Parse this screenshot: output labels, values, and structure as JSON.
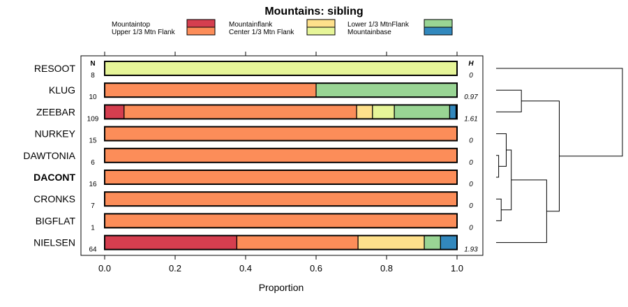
{
  "chart_data": {
    "type": "bar",
    "orientation": "horizontal",
    "stacked": "proportion",
    "title": "Mountains: sibling",
    "xlabel": "Proportion",
    "ylabel": "",
    "xlim": [
      0,
      1
    ],
    "xticks": [
      0.0,
      0.2,
      0.4,
      0.6,
      0.8,
      1.0
    ],
    "xtick_labels": [
      "0.0",
      "0.2",
      "0.4",
      "0.6",
      "0.8",
      "1.0"
    ],
    "n_header": "N",
    "h_header": "H",
    "legend": [
      {
        "name": "Mountaintop",
        "color": "#d53e4f"
      },
      {
        "name": "Upper 1/3 Mtn Flank",
        "color": "#fc8d59"
      },
      {
        "name": "Mountainflank",
        "color": "#fee08b"
      },
      {
        "name": "Center 1/3 Mtn Flank",
        "color": "#e6f598"
      },
      {
        "name": "Lower 1/3 MtnFlank",
        "color": "#99d594"
      },
      {
        "name": "Mountainbase",
        "color": "#3288bd"
      }
    ],
    "categories": [
      "RESOOT",
      "KLUG",
      "ZEEBAR",
      "NURKEY",
      "DAWTONIA",
      "DACONT",
      "CRONKS",
      "BIGFLAT",
      "NIELSEN"
    ],
    "highlighted": "DACONT",
    "N": [
      "8",
      "10",
      "109",
      "15",
      "6",
      "16",
      "7",
      "1",
      "64"
    ],
    "H": [
      "0",
      "0.97",
      "1.61",
      "0",
      "0",
      "0",
      "0",
      "0",
      "1.93"
    ],
    "series": [
      {
        "name": "Mountaintop",
        "values": [
          0,
          0,
          0.055,
          0,
          0,
          0,
          0,
          0,
          0.375
        ]
      },
      {
        "name": "Upper 1/3 Mtn Flank",
        "values": [
          0,
          0.6,
          0.66,
          1,
          1,
          1,
          1,
          1,
          0.344
        ]
      },
      {
        "name": "Mountainflank",
        "values": [
          0,
          0,
          0.045,
          0,
          0,
          0,
          0,
          0,
          0.188
        ]
      },
      {
        "name": "Center 1/3 Mtn Flank",
        "values": [
          1,
          0,
          0.062,
          0,
          0,
          0,
          0,
          0,
          0
        ]
      },
      {
        "name": "Lower 1/3 MtnFlank",
        "values": [
          0,
          0.4,
          0.157,
          0,
          0,
          0,
          0,
          0,
          0.046
        ]
      },
      {
        "name": "Mountainbase",
        "values": [
          0,
          0,
          0.018,
          0,
          0,
          0,
          0,
          0,
          0.047
        ]
      }
    ],
    "dendrogram": {
      "description": "hierarchical clustering of rows",
      "merges": [
        {
          "a": "KLUG",
          "b": "ZEEBAR",
          "height": 0.2
        },
        {
          "a": "DAWTONIA",
          "b": "DACONT",
          "height": 0.02
        },
        {
          "a": "NURKEY",
          "b": "DAWTONIA+DACONT",
          "height": 0.08
        },
        {
          "a": "CRONKS",
          "b": "BIGFLAT",
          "height": 0.04
        },
        {
          "a": "NURKEY+DAWTONIA+DACONT",
          "b": "CRONKS+BIGFLAT",
          "height": 0.12
        },
        {
          "a": "NURKEY..BIGFLAT",
          "b": "NIELSEN",
          "height": 0.4
        },
        {
          "a": "KLUG+ZEEBAR",
          "b": "NURKEY..NIELSEN",
          "height": 0.5
        },
        {
          "a": "RESOOT",
          "b": "rest",
          "height": 1.0
        }
      ]
    }
  }
}
